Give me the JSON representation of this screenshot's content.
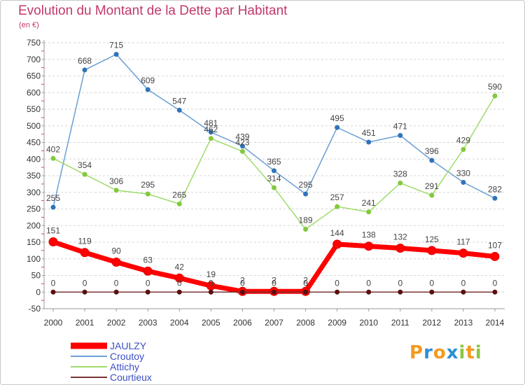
{
  "logo": "Proxiti",
  "chart_data": {
    "type": "line",
    "title": "Evolution du Montant de la Dette par Habitant",
    "subtitle": "(en €)",
    "x": [
      "2000",
      "2001",
      "2002",
      "2003",
      "2004",
      "2005",
      "2006",
      "2007",
      "2008",
      "2009",
      "2010",
      "2011",
      "2012",
      "2013",
      "2014"
    ],
    "ylim": [
      -50,
      750
    ],
    "yticks": [
      -50,
      0,
      50,
      100,
      150,
      200,
      250,
      300,
      350,
      400,
      450,
      500,
      550,
      600,
      650,
      700,
      750
    ],
    "grid": true,
    "legend_position": "bottom-left",
    "series": [
      {
        "name": "JAULZY",
        "color": "#ff0000",
        "marker_color": "#ff0000",
        "values": [
          151,
          119,
          90,
          63,
          42,
          19,
          2,
          2,
          2,
          144,
          138,
          132,
          125,
          117,
          107
        ]
      },
      {
        "name": "Croutoy",
        "color": "#6b9fd4",
        "marker_color": "#2f74b8",
        "values": [
          255,
          668,
          715,
          609,
          547,
          481,
          439,
          365,
          295,
          495,
          451,
          471,
          396,
          330,
          282
        ]
      },
      {
        "name": "Attichy",
        "color": "#9edc6a",
        "marker_color": "#84c83e",
        "values": [
          402,
          354,
          306,
          295,
          265,
          462,
          423,
          314,
          189,
          257,
          241,
          328,
          291,
          429,
          590
        ]
      },
      {
        "name": "Courtieux",
        "color": "#7b3535",
        "marker_color": "#5a0f0f",
        "values": [
          0,
          0,
          0,
          0,
          0,
          0,
          0,
          0,
          0,
          0,
          0,
          0,
          0,
          0,
          0
        ]
      }
    ]
  }
}
